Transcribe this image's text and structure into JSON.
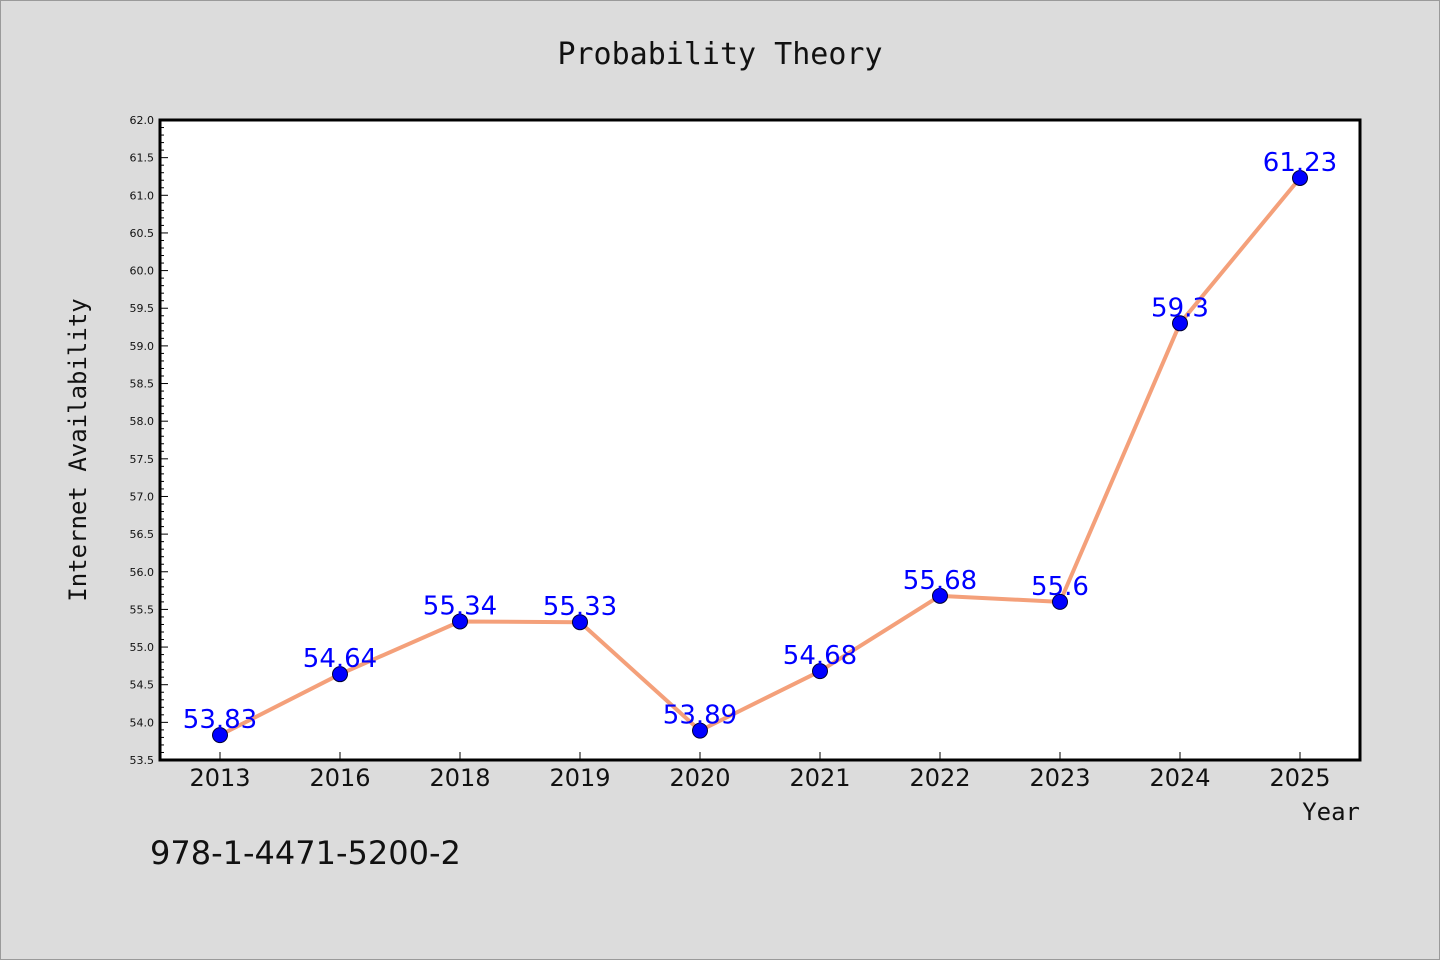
{
  "chart_data": {
    "type": "line",
    "title": "Probability Theory",
    "xlabel": "Year",
    "ylabel": "Internet Availability",
    "categories": [
      "2013",
      "2016",
      "2018",
      "2019",
      "2020",
      "2021",
      "2022",
      "2023",
      "2024",
      "2025"
    ],
    "series": [
      {
        "values": [
          53.83,
          54.64,
          55.34,
          55.33,
          53.89,
          54.68,
          55.68,
          55.6,
          59.3,
          61.23
        ],
        "data_labels": [
          "53.83",
          "54.64",
          "55.34",
          "55.33",
          "53.89",
          "54.68",
          "55.68",
          "55.6",
          "59.3",
          "61.23"
        ],
        "line_color": "#f4a07a",
        "marker_color": "#0000ff"
      }
    ],
    "ylim": [
      53.5,
      62.0
    ],
    "yticks": [
      53.5,
      54.0,
      54.5,
      55.0,
      55.5,
      56.0,
      56.5,
      57.0,
      57.5,
      58.0,
      58.5,
      59.0,
      59.5,
      60.0,
      60.5,
      61.0,
      61.5,
      62.0
    ],
    "ytick_labels": [
      "53.5",
      "54.0",
      "54.5",
      "55.0",
      "55.5",
      "56.0",
      "56.5",
      "57.0",
      "57.5",
      "58.0",
      "58.5",
      "59.0",
      "59.5",
      "60.0",
      "60.5",
      "61.0",
      "61.5",
      "62.0"
    ],
    "grid": false,
    "legend": "none",
    "background_color": "#dcdcdc",
    "plot_background": "#ffffff",
    "footnote": "978-1-4471-5200-2"
  }
}
